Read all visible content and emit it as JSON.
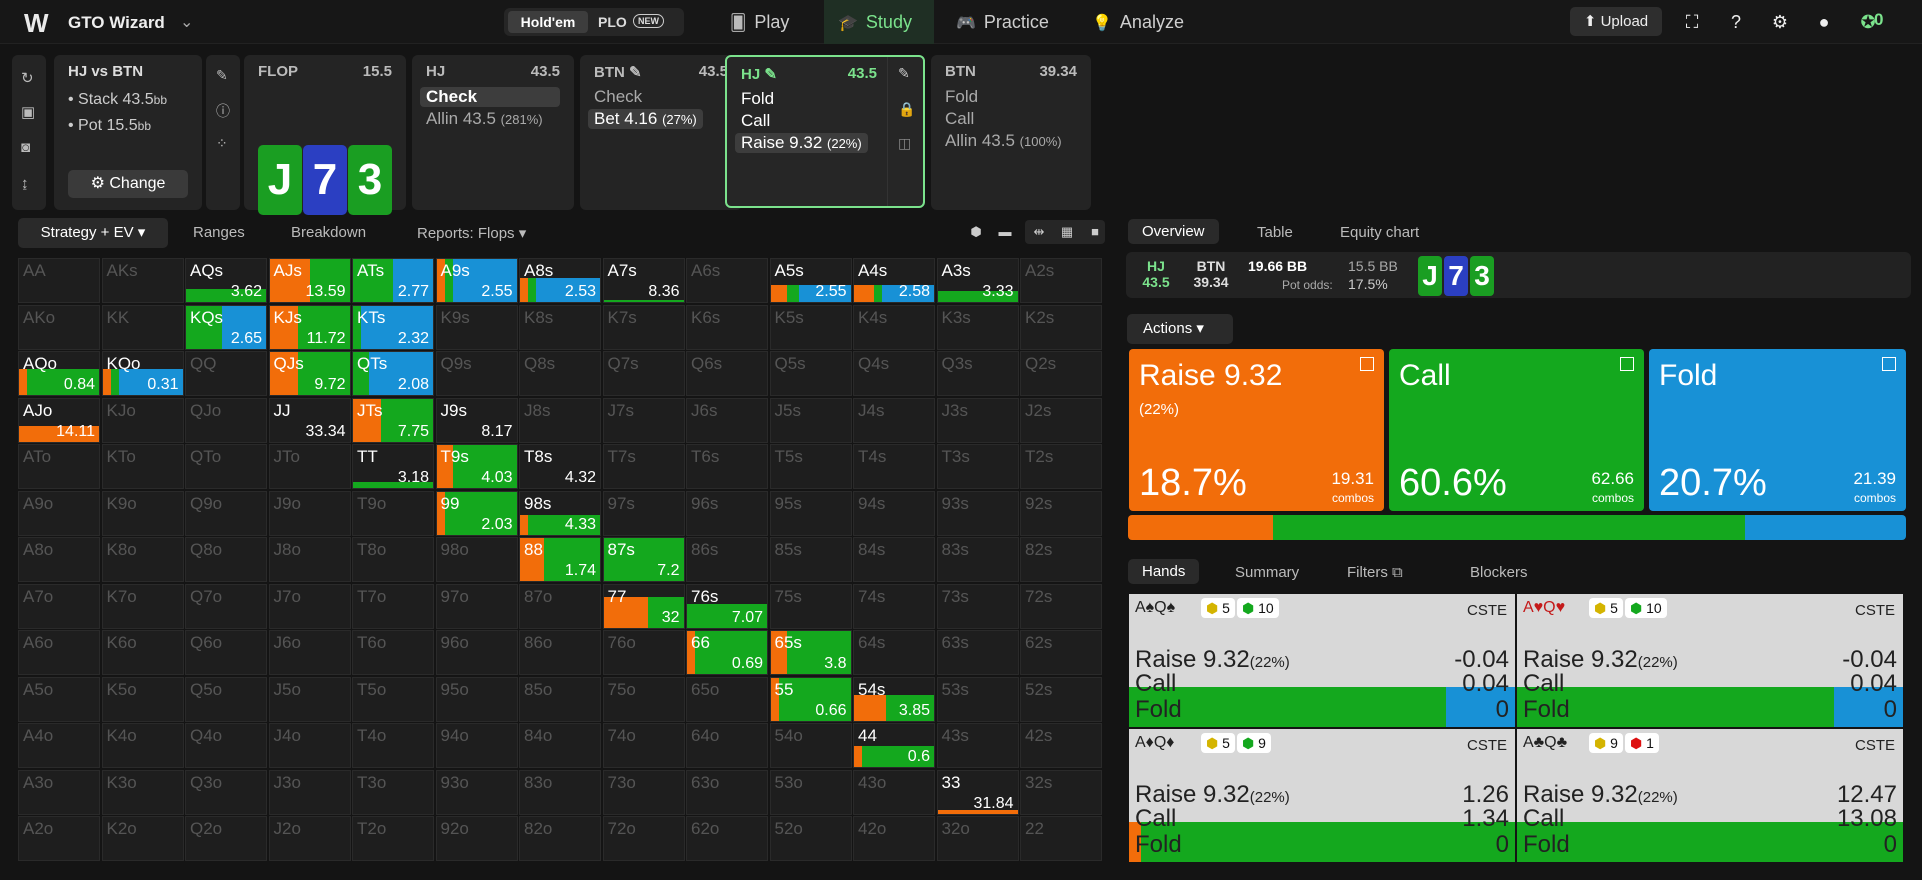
{
  "topbar": {
    "brand": "GTO Wizard",
    "game_toggle": {
      "holdem": "Hold'em",
      "plo": "PLO",
      "new_badge": "NEW"
    },
    "nav": [
      {
        "label": "Play",
        "icon": "cards-icon"
      },
      {
        "label": "Study",
        "icon": "graduation-cap-icon",
        "active": true
      },
      {
        "label": "Practice",
        "icon": "gamepad-icon"
      },
      {
        "label": "Analyze",
        "icon": "lightbulb-icon"
      }
    ],
    "upload": "Upload",
    "wizard_count": "0"
  },
  "spot": {
    "title": "HJ vs BTN",
    "stack_label": "Stack 43.5",
    "pot_label": "Pot 15.5",
    "bb": "bb",
    "change": "Change"
  },
  "cards": {
    "flop": {
      "label": "FLOP",
      "value": "15.5",
      "board": [
        "J",
        "7",
        "3"
      ]
    },
    "hj1": {
      "label": "HJ",
      "value": "43.5",
      "actions": [
        "Check",
        "Allin 43.5"
      ],
      "allin_pct": "(281%)"
    },
    "btn1": {
      "label": "BTN",
      "value": "43.5",
      "actions": [
        "Check",
        "Bet 4.16"
      ],
      "bet_pct": "(27%)"
    },
    "hj2": {
      "label": "HJ",
      "value": "43.5",
      "actions": [
        "Fold",
        "Call",
        "Raise 9.32"
      ],
      "raise_pct": "(22%)"
    },
    "btn2": {
      "label": "BTN",
      "value": "39.34",
      "actions": [
        "Fold",
        "Call",
        "Allin 43.5"
      ],
      "allin_pct": "(100%)"
    }
  },
  "strategy_tabs": {
    "main": "Strategy + EV",
    "ranges": "Ranges",
    "breakdown": "Breakdown",
    "reports": "Reports: Flops"
  },
  "colors": {
    "raise": "#f26d0a",
    "call": "#14a81e",
    "fold": "#1891d6"
  },
  "grid": [
    [
      "AA",
      "AKs",
      "AQs",
      "AJs",
      "ATs",
      "A9s",
      "A8s",
      "A7s",
      "A6s",
      "A5s",
      "A4s",
      "A3s",
      "A2s"
    ],
    [
      "AKo",
      "KK",
      "KQs",
      "KJs",
      "KTs",
      "K9s",
      "K8s",
      "K7s",
      "K6s",
      "K5s",
      "K4s",
      "K3s",
      "K2s"
    ],
    [
      "AQo",
      "KQo",
      "QQ",
      "QJs",
      "QTs",
      "Q9s",
      "Q8s",
      "Q7s",
      "Q6s",
      "Q5s",
      "Q4s",
      "Q3s",
      "Q2s"
    ],
    [
      "AJo",
      "KJo",
      "QJo",
      "JJ",
      "JTs",
      "J9s",
      "J8s",
      "J7s",
      "J6s",
      "J5s",
      "J4s",
      "J3s",
      "J2s"
    ],
    [
      "ATo",
      "KTo",
      "QTo",
      "JTo",
      "TT",
      "T9s",
      "T8s",
      "T7s",
      "T6s",
      "T5s",
      "T4s",
      "T3s",
      "T2s"
    ],
    [
      "A9o",
      "K9o",
      "Q9o",
      "J9o",
      "T9o",
      "99",
      "98s",
      "97s",
      "96s",
      "95s",
      "94s",
      "93s",
      "92s"
    ],
    [
      "A8o",
      "K8o",
      "Q8o",
      "J8o",
      "T8o",
      "98o",
      "88",
      "87s",
      "86s",
      "85s",
      "84s",
      "83s",
      "82s"
    ],
    [
      "A7o",
      "K7o",
      "Q7o",
      "J7o",
      "T7o",
      "97o",
      "87o",
      "77",
      "76s",
      "75s",
      "74s",
      "73s",
      "72s"
    ],
    [
      "A6o",
      "K6o",
      "Q6o",
      "J6o",
      "T6o",
      "96o",
      "86o",
      "76o",
      "66",
      "65s",
      "64s",
      "63s",
      "62s"
    ],
    [
      "A5o",
      "K5o",
      "Q5o",
      "J5o",
      "T5o",
      "95o",
      "85o",
      "75o",
      "65o",
      "55",
      "54s",
      "53s",
      "52s"
    ],
    [
      "A4o",
      "K4o",
      "Q4o",
      "J4o",
      "T4o",
      "94o",
      "84o",
      "74o",
      "64o",
      "54o",
      "44",
      "43s",
      "42s"
    ],
    [
      "A3o",
      "K3o",
      "Q3o",
      "J3o",
      "T3o",
      "93o",
      "83o",
      "73o",
      "63o",
      "53o",
      "43o",
      "33",
      "32s"
    ],
    [
      "A2o",
      "K2o",
      "Q2o",
      "J2o",
      "T2o",
      "92o",
      "82o",
      "72o",
      "62o",
      "52o",
      "42o",
      "32o",
      "22"
    ]
  ],
  "cells": {
    "AQs": {
      "ev": "3.62",
      "raise": 0,
      "call": 1,
      "fold": 0,
      "h": 0.3
    },
    "AJs": {
      "ev": "13.59",
      "raise": 0.5,
      "call": 0.5,
      "fold": 0,
      "h": 1
    },
    "ATs": {
      "ev": "2.77",
      "raise": 0,
      "call": 0.5,
      "fold": 0.5,
      "h": 1
    },
    "A9s": {
      "ev": "2.55",
      "raise": 0.1,
      "call": 0.1,
      "fold": 0.8,
      "h": 1
    },
    "A8s": {
      "ev": "2.53",
      "raise": 0.1,
      "call": 0.1,
      "fold": 0.8,
      "h": 0.55
    },
    "A7s": {
      "ev": "8.36",
      "raise": 0,
      "call": 1,
      "fold": 0,
      "h": 0.05
    },
    "A5s": {
      "ev": "2.55",
      "raise": 0.2,
      "call": 0.15,
      "fold": 0.65,
      "h": 0.4
    },
    "A4s": {
      "ev": "2.58",
      "raise": 0.25,
      "call": 0.1,
      "fold": 0.65,
      "h": 0.4
    },
    "A3s": {
      "ev": "3.33",
      "raise": 0,
      "call": 1,
      "fold": 0,
      "h": 0.25
    },
    "KQs": {
      "ev": "2.65",
      "raise": 0,
      "call": 0.45,
      "fold": 0.55,
      "h": 1
    },
    "KJs": {
      "ev": "11.72",
      "raise": 0.35,
      "call": 0.65,
      "fold": 0,
      "h": 1
    },
    "KTs": {
      "ev": "2.32",
      "raise": 0,
      "call": 0.1,
      "fold": 0.9,
      "h": 1
    },
    "AQo": {
      "ev": "0.84",
      "raise": 0.1,
      "call": 0.9,
      "fold": 0,
      "h": 0.6
    },
    "KQo": {
      "ev": "0.31",
      "raise": 0.1,
      "call": 0.1,
      "fold": 0.8,
      "h": 0.6
    },
    "QJs": {
      "ev": "9.72",
      "raise": 0.35,
      "call": 0.65,
      "fold": 0,
      "h": 1
    },
    "QTs": {
      "ev": "2.08",
      "raise": 0,
      "call": 0.2,
      "fold": 0.8,
      "h": 1
    },
    "AJo": {
      "ev": "14.11",
      "raise": 1,
      "call": 0,
      "fold": 0,
      "h": 0.35
    },
    "JJ": {
      "ev": "33.34",
      "raise": 0,
      "call": 0,
      "fold": 0,
      "h": 0
    },
    "JTs": {
      "ev": "7.75",
      "raise": 0.35,
      "call": 0.65,
      "fold": 0,
      "h": 1
    },
    "J9s": {
      "ev": "8.17",
      "raise": 0,
      "call": 0,
      "fold": 0,
      "h": 0
    },
    "TT": {
      "ev": "3.18",
      "raise": 0,
      "call": 1,
      "fold": 0,
      "h": 0.15
    },
    "T9s": {
      "ev": "4.03",
      "raise": 0.2,
      "call": 0.8,
      "fold": 0,
      "h": 1
    },
    "T8s": {
      "ev": "4.32",
      "raise": 0,
      "call": 0,
      "fold": 0,
      "h": 0
    },
    "99": {
      "ev": "2.03",
      "raise": 0.1,
      "call": 0.9,
      "fold": 0,
      "h": 1
    },
    "98s": {
      "ev": "4.33",
      "raise": 0.1,
      "call": 0.9,
      "fold": 0,
      "h": 0.45
    },
    "88": {
      "ev": "1.74",
      "raise": 0.3,
      "call": 0.7,
      "fold": 0,
      "h": 1
    },
    "87s": {
      "ev": "7.2",
      "raise": 0,
      "call": 1,
      "fold": 0,
      "h": 1
    },
    "77": {
      "ev": "32",
      "raise": 0.55,
      "call": 0.45,
      "fold": 0,
      "h": 0.7
    },
    "76s": {
      "ev": "7.07",
      "raise": 0,
      "call": 1,
      "fold": 0,
      "h": 0.55
    },
    "66": {
      "ev": "0.69",
      "raise": 0.1,
      "call": 0.9,
      "fold": 0,
      "h": 1
    },
    "65s": {
      "ev": "3.8",
      "raise": 0.2,
      "call": 0.8,
      "fold": 0,
      "h": 1
    },
    "55": {
      "ev": "0.66",
      "raise": 0.1,
      "call": 0.9,
      "fold": 0,
      "h": 1
    },
    "54s": {
      "ev": "3.85",
      "raise": 0.4,
      "call": 0.6,
      "fold": 0,
      "h": 0.6
    },
    "44": {
      "ev": "0.6",
      "raise": 0.1,
      "call": 0.9,
      "fold": 0,
      "h": 0.5
    },
    "33": {
      "ev": "31.84",
      "raise": 1,
      "call": 0,
      "fold": 0,
      "h": 0.08
    }
  },
  "right_tabs": {
    "overview": "Overview",
    "table": "Table",
    "equity": "Equity chart"
  },
  "info": {
    "hj_label": "HJ",
    "hj_val": "43.5",
    "btn_label": "BTN",
    "btn_val": "39.34",
    "pot_bb": "19.66 BB",
    "pot_val": "15.5 BB",
    "pot_odds_label": "Pot odds:",
    "pot_odds": "17.5%",
    "board": [
      "J",
      "7",
      "3"
    ]
  },
  "actions_btn": "Actions",
  "action_boxes": [
    {
      "name": "Raise 9.32",
      "pct_note": "(22%)",
      "freq": "18.7%",
      "combos": "19.31",
      "combos_label": "combos"
    },
    {
      "name": "Call",
      "pct_note": "",
      "freq": "60.6%",
      "combos": "62.66",
      "combos_label": "combos"
    },
    {
      "name": "Fold",
      "pct_note": "",
      "freq": "20.7%",
      "combos": "21.39",
      "combos_label": "combos"
    }
  ],
  "freqbar": {
    "raise": 18.7,
    "call": 60.6,
    "fold": 20.7
  },
  "hand_tabs": {
    "hands": "Hands",
    "summary": "Summary",
    "filters": "Filters",
    "blockers": "Blockers"
  },
  "hands": [
    {
      "combo": "A♠Q♠",
      "b1": "5",
      "b2": "10",
      "cste": "CSTE",
      "raise_label": "Raise 9.32",
      "raise_pct": "(22%)",
      "raise_ev": "-0.04",
      "call_ev": "0.04",
      "fold_ev": "0",
      "call_label": "Call",
      "fold_label": "Fold",
      "red": false,
      "mix": [
        0,
        0.82,
        0.18
      ]
    },
    {
      "combo": "A♥Q♥",
      "b1": "5",
      "b2": "10",
      "cste": "CSTE",
      "raise_label": "Raise 9.32",
      "raise_pct": "(22%)",
      "raise_ev": "-0.04",
      "call_ev": "0.04",
      "fold_ev": "0",
      "call_label": "Call",
      "fold_label": "Fold",
      "red": true,
      "mix": [
        0,
        0.82,
        0.18
      ]
    },
    {
      "combo": "A♦Q♦",
      "b1": "5",
      "b2": "9",
      "cste": "CSTE",
      "raise_label": "Raise 9.32",
      "raise_pct": "(22%)",
      "raise_ev": "1.26",
      "call_ev": "1.34",
      "fold_ev": "0",
      "call_label": "Call",
      "fold_label": "Fold",
      "red": false,
      "mix": [
        0.03,
        0.97,
        0
      ]
    },
    {
      "combo": "A♣Q♣",
      "b1": "9",
      "b2": "1",
      "cste": "CSTE",
      "raise_label": "Raise 9.32",
      "raise_pct": "(22%)",
      "raise_ev": "12.47",
      "call_ev": "13.08",
      "fold_ev": "0",
      "call_label": "Call",
      "fold_label": "Fold",
      "red": false,
      "mix": [
        0,
        1,
        0
      ]
    }
  ]
}
